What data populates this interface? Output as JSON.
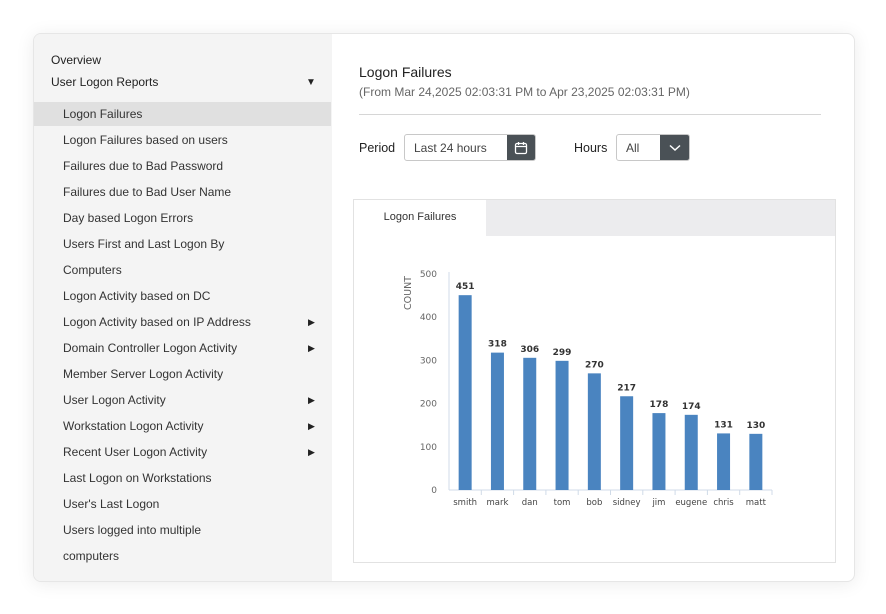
{
  "sidebar": {
    "overview": "Overview",
    "section": "User Logon Reports",
    "items": [
      {
        "label": "Logon Failures",
        "active": true,
        "arrow": false
      },
      {
        "label": "Logon Failures based on users",
        "arrow": false
      },
      {
        "label": "Failures due to Bad Password",
        "arrow": false
      },
      {
        "label": "Failures due to Bad User Name",
        "arrow": false
      },
      {
        "label": "Day based Logon Errors",
        "arrow": false
      },
      {
        "label": "Users First and Last Logon By",
        "arrow": false
      },
      {
        "label": "Computers",
        "arrow": false
      },
      {
        "label": "Logon Activity based on DC",
        "arrow": false
      },
      {
        "label": "Logon Activity based on IP Address",
        "arrow": true
      },
      {
        "label": "Domain Controller Logon Activity",
        "arrow": true
      },
      {
        "label": "Member Server Logon Activity",
        "arrow": false
      },
      {
        "label": "User Logon Activity",
        "arrow": true
      },
      {
        "label": "Workstation Logon Activity",
        "arrow": true
      },
      {
        "label": "Recent User Logon Activity",
        "arrow": true
      },
      {
        "label": "Last Logon on Workstations",
        "arrow": false
      },
      {
        "label": "User's Last Logon",
        "arrow": false
      },
      {
        "label": "Users logged into multiple",
        "arrow": false
      },
      {
        "label": "computers",
        "arrow": false
      }
    ]
  },
  "main": {
    "title": "Logon Failures",
    "subtitle": "(From Mar 24,2025 02:03:31 PM to Apr 23,2025 02:03:31 PM)",
    "period_label": "Period",
    "period_value": "Last 24 hours",
    "hours_label": "Hours",
    "hours_value": "All",
    "tab": "Logon Failures"
  },
  "chart_data": {
    "type": "bar",
    "categories": [
      "smith",
      "mark",
      "dan",
      "tom",
      "bob",
      "sidney",
      "jim",
      "eugene",
      "chris",
      "matt"
    ],
    "values": [
      451,
      318,
      306,
      299,
      270,
      217,
      178,
      174,
      131,
      130
    ],
    "ylabel": "COUNT",
    "ylim": [
      0,
      500
    ],
    "yticks": [
      0,
      100,
      200,
      300,
      400,
      500
    ],
    "bar_color": "#4a84c0",
    "grid": false
  }
}
